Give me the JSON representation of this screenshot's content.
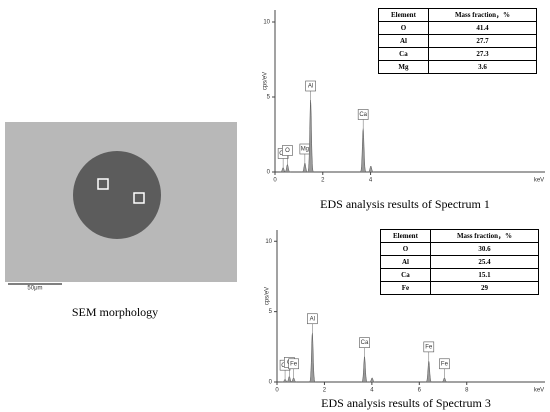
{
  "sem": {
    "caption": "SEM morphology",
    "scale_bar": "50μm"
  },
  "spectra": [
    {
      "caption": "EDS analysis results of Spectrum 1",
      "ylabel": "cps/eV",
      "xlabel": "keV",
      "xlim": [
        0,
        11.3
      ],
      "xticks": [
        0,
        2,
        4
      ],
      "ylim": [
        0,
        10.8
      ],
      "yticks": [
        0,
        5,
        10
      ],
      "peaks": [
        {
          "label": "Ca",
          "energy": 0.34,
          "height": 0.3
        },
        {
          "label": "O",
          "energy": 0.52,
          "height": 0.5
        },
        {
          "label": "Mg",
          "energy": 1.25,
          "height": 0.6
        },
        {
          "label": "Al",
          "energy": 1.49,
          "height": 4.8
        },
        {
          "label": "Ca",
          "energy": 3.69,
          "height": 2.9
        },
        {
          "label": null,
          "energy": 4.01,
          "height": 0.4
        }
      ],
      "table": {
        "header": [
          "Element",
          "Mass fraction，%"
        ],
        "rows": [
          [
            "O",
            "41.4"
          ],
          [
            "Al",
            "27.7"
          ],
          [
            "Ca",
            "27.3"
          ],
          [
            "Mg",
            "3.6"
          ]
        ]
      }
    },
    {
      "caption": "EDS analysis results of Spectrum 3",
      "ylabel": "cps/eV",
      "xlabel": "keV",
      "xlim": [
        0,
        11.3
      ],
      "xticks": [
        0,
        2,
        4,
        6,
        8
      ],
      "ylim": [
        0,
        10.8
      ],
      "yticks": [
        0,
        5,
        10
      ],
      "peaks": [
        {
          "label": "Ca",
          "energy": 0.34,
          "height": 0.2
        },
        {
          "label": "O",
          "energy": 0.52,
          "height": 0.4
        },
        {
          "label": "Fe",
          "energy": 0.7,
          "height": 0.3
        },
        {
          "label": "Al",
          "energy": 1.49,
          "height": 3.5
        },
        {
          "label": "Ca",
          "energy": 3.69,
          "height": 1.8
        },
        {
          "label": null,
          "energy": 4.01,
          "height": 0.3
        },
        {
          "label": "Fe",
          "energy": 6.4,
          "height": 1.5
        },
        {
          "label": "Fe",
          "energy": 7.06,
          "height": 0.3
        }
      ],
      "table": {
        "header": [
          "Element",
          "Mass fraction，%"
        ],
        "rows": [
          [
            "O",
            "30.6"
          ],
          [
            "Al",
            "25.4"
          ],
          [
            "Ca",
            "15.1"
          ],
          [
            "Fe",
            "29"
          ]
        ]
      }
    }
  ]
}
